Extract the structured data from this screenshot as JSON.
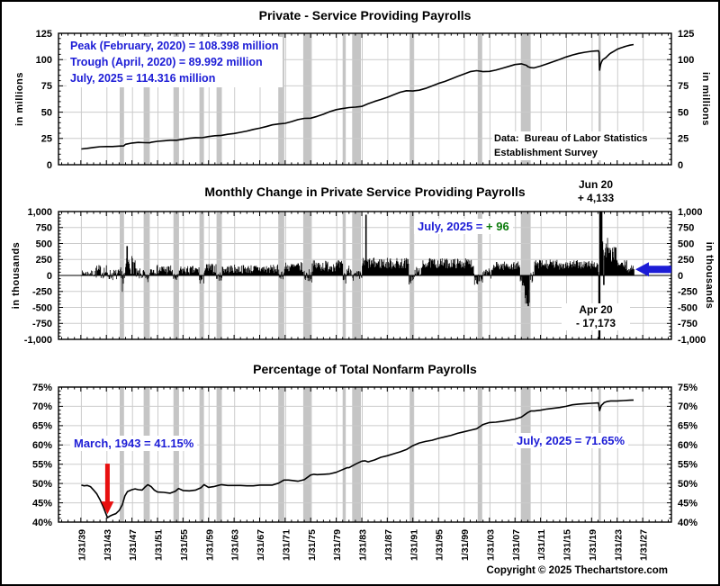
{
  "page": {
    "copyright": "Copyright © 2025 Thechartstore.com"
  },
  "colors": {
    "annotation_blue": "#1c1cd6",
    "positive_green": "#0a7a0a",
    "arrow_red": "#e81010",
    "series_black": "#000000",
    "recession_band": "#c5c5c5",
    "gridline": "#cbcbcb",
    "axis_black": "#000000"
  },
  "x_axis": {
    "domain": [
      1935.5,
      2031.5
    ],
    "tick_years": [
      1939.083,
      1943.083,
      1947.083,
      1951.083,
      1955.083,
      1959.083,
      1963.083,
      1967.083,
      1971.083,
      1975.083,
      1979.083,
      1983.083,
      1987.083,
      1991.083,
      1995.083,
      1999.083,
      2003.083,
      2007.083,
      2011.083,
      2015.083,
      2019.083,
      2023.083,
      2027.083
    ],
    "tick_labels": [
      "1/31/39",
      "1/31/43",
      "1/31/47",
      "1/31/51",
      "1/31/55",
      "1/31/59",
      "1/31/63",
      "1/31/67",
      "1/31/71",
      "1/31/75",
      "1/31/79",
      "1/31/83",
      "1/31/87",
      "1/31/91",
      "1/31/95",
      "1/31/99",
      "1/31/03",
      "1/31/07",
      "1/31/11",
      "1/31/15",
      "1/31/19",
      "1/31/23",
      "1/31/27"
    ],
    "minor_step_years": 1
  },
  "recessions": [
    [
      1945.08,
      1945.75
    ],
    [
      1948.83,
      1949.79
    ],
    [
      1953.5,
      1954.38
    ],
    [
      1957.58,
      1958.29
    ],
    [
      1960.25,
      1961.08
    ],
    [
      1969.92,
      1970.87
    ],
    [
      1973.83,
      1975.17
    ],
    [
      1980.0,
      1980.5
    ],
    [
      1981.5,
      1982.87
    ],
    [
      1990.5,
      1991.21
    ],
    [
      2001.17,
      2001.87
    ],
    [
      2007.92,
      2009.45
    ],
    [
      2020.08,
      2020.45
    ]
  ],
  "chart_data": [
    {
      "id": "levels",
      "type": "line",
      "title": "Private - Service Providing Payrolls",
      "y_axis_title": "in millions",
      "ylim": [
        0,
        125
      ],
      "yticks": [
        0,
        25,
        50,
        75,
        100,
        125
      ],
      "ytick_labels": [
        "0",
        "25",
        "50",
        "75",
        "100",
        "125"
      ],
      "y_minor_step": 5,
      "annotations": {
        "peak": "Peak (February, 2020) = 108.398 million",
        "trough": "Trough (April, 2020) = 89.992 million",
        "current": "July, 2025 = 114.316 million",
        "source_line1": "Data:  Bureau of Labor Statistics",
        "source_line2": "Establishment Survey"
      },
      "points": [
        [
          1939.08,
          15.0
        ],
        [
          1940,
          15.6
        ],
        [
          1941,
          16.4
        ],
        [
          1942,
          17.1
        ],
        [
          1943,
          17.3
        ],
        [
          1944,
          17.3
        ],
        [
          1945,
          17.7
        ],
        [
          1945.7,
          17.9
        ],
        [
          1946,
          19.4
        ],
        [
          1947,
          20.6
        ],
        [
          1948,
          21.2
        ],
        [
          1949,
          21.0
        ],
        [
          1949.8,
          20.9
        ],
        [
          1950,
          21.3
        ],
        [
          1951,
          22.3
        ],
        [
          1952,
          22.8
        ],
        [
          1953,
          23.3
        ],
        [
          1954,
          23.3
        ],
        [
          1955,
          24.2
        ],
        [
          1956,
          25.2
        ],
        [
          1957,
          25.8
        ],
        [
          1958,
          25.7
        ],
        [
          1959,
          26.8
        ],
        [
          1960,
          27.6
        ],
        [
          1961,
          27.9
        ],
        [
          1962,
          28.9
        ],
        [
          1963,
          29.7
        ],
        [
          1964,
          30.8
        ],
        [
          1965,
          32.0
        ],
        [
          1966,
          33.6
        ],
        [
          1967,
          34.8
        ],
        [
          1968,
          36.2
        ],
        [
          1969,
          37.9
        ],
        [
          1970,
          38.8
        ],
        [
          1971,
          39.4
        ],
        [
          1972,
          41.0
        ],
        [
          1973,
          42.9
        ],
        [
          1974,
          44.1
        ],
        [
          1975,
          44.3
        ],
        [
          1976,
          46.0
        ],
        [
          1977,
          48.0
        ],
        [
          1978,
          50.5
        ],
        [
          1979,
          52.4
        ],
        [
          1980,
          53.4
        ],
        [
          1981,
          54.4
        ],
        [
          1982,
          54.8
        ],
        [
          1983,
          55.5
        ],
        [
          1984,
          58.0
        ],
        [
          1985,
          60.2
        ],
        [
          1986,
          62.1
        ],
        [
          1987,
          64.1
        ],
        [
          1988,
          66.6
        ],
        [
          1989,
          68.9
        ],
        [
          1990,
          70.4
        ],
        [
          1991,
          70.1
        ],
        [
          1992,
          70.9
        ],
        [
          1993,
          72.6
        ],
        [
          1994,
          74.9
        ],
        [
          1995,
          77.3
        ],
        [
          1996,
          79.2
        ],
        [
          1997,
          81.6
        ],
        [
          1998,
          84.0
        ],
        [
          1999,
          86.3
        ],
        [
          2000,
          88.5
        ],
        [
          2001,
          89.5
        ],
        [
          2001.8,
          88.8
        ],
        [
          2002,
          88.5
        ],
        [
          2003,
          88.8
        ],
        [
          2004,
          90.0
        ],
        [
          2005,
          91.7
        ],
        [
          2006,
          93.5
        ],
        [
          2007,
          95.3
        ],
        [
          2008,
          96.0
        ],
        [
          2008.8,
          94.5
        ],
        [
          2009,
          93.3
        ],
        [
          2009.5,
          92.3
        ],
        [
          2010,
          92.1
        ],
        [
          2011,
          93.8
        ],
        [
          2012,
          95.9
        ],
        [
          2013,
          98.0
        ],
        [
          2014,
          100.2
        ],
        [
          2015,
          102.5
        ],
        [
          2016,
          104.4
        ],
        [
          2017,
          105.9
        ],
        [
          2018,
          107.0
        ],
        [
          2019,
          107.9
        ],
        [
          2019.5,
          108.1
        ],
        [
          2020.08,
          108.398
        ],
        [
          2020.17,
          107.0
        ],
        [
          2020.25,
          89.992
        ],
        [
          2020.42,
          95.5
        ],
        [
          2020.58,
          98.0
        ],
        [
          2020.75,
          99.8
        ],
        [
          2020.92,
          100.6
        ],
        [
          2021.25,
          102.0
        ],
        [
          2021.5,
          103.5
        ],
        [
          2021.75,
          105.0
        ],
        [
          2022,
          106.2
        ],
        [
          2022.5,
          108.0
        ],
        [
          2023,
          109.8
        ],
        [
          2023.5,
          111.0
        ],
        [
          2024,
          112.0
        ],
        [
          2024.5,
          112.9
        ],
        [
          2025,
          113.7
        ],
        [
          2025.58,
          114.316
        ]
      ]
    },
    {
      "id": "monthly-change",
      "type": "bar",
      "title": "Monthly Change in Private Service Providing Payrolls",
      "y_axis_title": "in thousands",
      "ylim": [
        -1000,
        1000
      ],
      "yticks": [
        -1000,
        -750,
        -500,
        -250,
        0,
        250,
        500,
        750,
        1000
      ],
      "ytick_labels": [
        "-1,000",
        "-750",
        "-500",
        "-250",
        "0",
        "250",
        "500",
        "750",
        "1,000"
      ],
      "y_minor_step": 50,
      "bar_months": {
        "start": 1939.083,
        "end": 2025.583,
        "step_months": 1,
        "noise_seed": 7
      },
      "segments": [
        [
          1939.08,
          1941,
          35,
          45
        ],
        [
          1941,
          1943,
          60,
          110
        ],
        [
          1943,
          1945.2,
          10,
          90
        ],
        [
          1945.2,
          1946,
          -60,
          200
        ],
        [
          1946,
          1947.5,
          170,
          150
        ],
        [
          1947.5,
          1949,
          20,
          90
        ],
        [
          1949,
          1949.8,
          -60,
          80
        ],
        [
          1949.8,
          1953.4,
          90,
          80
        ],
        [
          1953.4,
          1954.4,
          -40,
          70
        ],
        [
          1954.4,
          1957.5,
          80,
          70
        ],
        [
          1957.5,
          1958.3,
          -70,
          80
        ],
        [
          1958.3,
          1960.2,
          110,
          80
        ],
        [
          1960.2,
          1961.1,
          -20,
          70
        ],
        [
          1961.1,
          1969.9,
          100,
          70
        ],
        [
          1969.9,
          1970.9,
          20,
          80
        ],
        [
          1970.9,
          1973.8,
          130,
          80
        ],
        [
          1973.8,
          1975.2,
          0,
          110
        ],
        [
          1975.2,
          1980,
          150,
          90
        ],
        [
          1980,
          1980.6,
          -30,
          110
        ],
        [
          1980.6,
          1981.5,
          80,
          90
        ],
        [
          1981.5,
          1983,
          -20,
          100
        ],
        [
          1983,
          1990.4,
          190,
          90
        ],
        [
          1990.4,
          1991.3,
          -60,
          90
        ],
        [
          1991.3,
          1992.5,
          60,
          80
        ],
        [
          1992.5,
          2000.5,
          190,
          80
        ],
        [
          2000.5,
          2002,
          -40,
          110
        ],
        [
          2002,
          2003.5,
          30,
          80
        ],
        [
          2003.5,
          2007.8,
          150,
          70
        ],
        [
          2007.8,
          2008.5,
          -90,
          90
        ],
        [
          2008.5,
          2009.3,
          -330,
          110
        ],
        [
          2009.3,
          2010,
          -30,
          90
        ],
        [
          2010,
          2015,
          170,
          80
        ],
        [
          2015,
          2020,
          170,
          70
        ],
        [
          2020.6,
          2021.6,
          420,
          180
        ],
        [
          2021.6,
          2023,
          330,
          120
        ],
        [
          2023,
          2024.5,
          160,
          80
        ],
        [
          2024.5,
          2025.5,
          100,
          60
        ]
      ],
      "event_bars": [
        [
          1946.25,
          460
        ],
        [
          1983.67,
          950
        ],
        [
          2008.92,
          -440
        ],
        [
          2009.08,
          -480
        ],
        [
          2020.17,
          -1300
        ],
        [
          2020.25,
          -17173
        ],
        [
          2020.33,
          2900
        ],
        [
          2020.42,
          4133
        ],
        [
          2020.5,
          1600
        ],
        [
          2020.58,
          1000
        ],
        [
          2020.92,
          -150
        ],
        [
          2025.58,
          96
        ]
      ],
      "annotations": {
        "high_label": "Jun 20",
        "high_value": "+ 4,133",
        "current_label": "July, 2025 =",
        "current_value": "+ 96",
        "low_label": "Apr 20",
        "low_value": "- 17,173"
      },
      "current_arrow": {
        "x_value": 2025.58,
        "y_value": 96,
        "color": "blue",
        "direction": "left"
      }
    },
    {
      "id": "percentage",
      "type": "line",
      "title": "Percentage of Total Nonfarm Payrolls",
      "y_axis_title": "",
      "ylim": [
        40,
        75
      ],
      "yticks": [
        40,
        45,
        50,
        55,
        60,
        65,
        70,
        75
      ],
      "ytick_labels": [
        "40%",
        "45%",
        "50%",
        "55%",
        "60%",
        "65%",
        "70%",
        "75%"
      ],
      "y_minor_step": 1,
      "annotations": {
        "trough": "March, 1943 = 41.15%",
        "current": "July, 2025 = 71.65%"
      },
      "trough_arrow": {
        "x_value": 1943.17,
        "y_value": 41.15,
        "color": "red",
        "direction": "down"
      },
      "points": [
        [
          1939.08,
          49.6
        ],
        [
          1939.5,
          49.4
        ],
        [
          1940,
          49.5
        ],
        [
          1940.5,
          49.2
        ],
        [
          1941,
          48.3
        ],
        [
          1941.5,
          47.3
        ],
        [
          1942,
          45.8
        ],
        [
          1942.5,
          44.0
        ],
        [
          1943.17,
          41.15
        ],
        [
          1943.6,
          41.6
        ],
        [
          1944,
          41.9
        ],
        [
          1944.5,
          42.2
        ],
        [
          1945,
          43.0
        ],
        [
          1945.5,
          44.5
        ],
        [
          1945.9,
          46.8
        ],
        [
          1946.3,
          47.9
        ],
        [
          1947,
          48.4
        ],
        [
          1947.5,
          48.6
        ],
        [
          1948,
          48.4
        ],
        [
          1948.6,
          48.3
        ],
        [
          1949,
          49.0
        ],
        [
          1949.5,
          49.7
        ],
        [
          1950,
          49.2
        ],
        [
          1950.5,
          48.3
        ],
        [
          1951,
          47.8
        ],
        [
          1952,
          47.7
        ],
        [
          1953,
          47.5
        ],
        [
          1953.8,
          48.0
        ],
        [
          1954.3,
          48.7
        ],
        [
          1955,
          48.2
        ],
        [
          1956,
          48.1
        ],
        [
          1957,
          48.3
        ],
        [
          1957.8,
          48.9
        ],
        [
          1958.3,
          49.7
        ],
        [
          1959,
          49.0
        ],
        [
          1959.8,
          49.2
        ],
        [
          1960.5,
          49.5
        ],
        [
          1961,
          49.7
        ],
        [
          1962,
          49.5
        ],
        [
          1963,
          49.5
        ],
        [
          1964,
          49.5
        ],
        [
          1965,
          49.4
        ],
        [
          1966,
          49.4
        ],
        [
          1967,
          49.6
        ],
        [
          1968,
          49.6
        ],
        [
          1969,
          49.6
        ],
        [
          1970,
          50.1
        ],
        [
          1970.8,
          50.9
        ],
        [
          1971.5,
          50.9
        ],
        [
          1972,
          50.8
        ],
        [
          1973,
          50.6
        ],
        [
          1974,
          51.0
        ],
        [
          1975,
          52.2
        ],
        [
          1975.5,
          52.4
        ],
        [
          1976,
          52.3
        ],
        [
          1977,
          52.4
        ],
        [
          1978,
          52.5
        ],
        [
          1979,
          52.9
        ],
        [
          1980,
          53.6
        ],
        [
          1980.7,
          54.1
        ],
        [
          1981,
          54.1
        ],
        [
          1982,
          55.0
        ],
        [
          1983,
          55.8
        ],
        [
          1983.5,
          55.9
        ],
        [
          1984,
          55.6
        ],
        [
          1985,
          56.1
        ],
        [
          1986,
          56.8
        ],
        [
          1987,
          57.2
        ],
        [
          1988,
          57.7
        ],
        [
          1989,
          58.2
        ],
        [
          1990,
          58.8
        ],
        [
          1991,
          59.8
        ],
        [
          1992,
          60.5
        ],
        [
          1993,
          60.9
        ],
        [
          1994,
          61.2
        ],
        [
          1995,
          61.7
        ],
        [
          1996,
          62.1
        ],
        [
          1997,
          62.5
        ],
        [
          1998,
          63.0
        ],
        [
          1999,
          63.4
        ],
        [
          2000,
          63.8
        ],
        [
          2001,
          64.2
        ],
        [
          2002,
          65.3
        ],
        [
          2003,
          65.8
        ],
        [
          2004,
          65.9
        ],
        [
          2005,
          66.1
        ],
        [
          2006,
          66.4
        ],
        [
          2007,
          66.7
        ],
        [
          2008,
          67.2
        ],
        [
          2009,
          68.4
        ],
        [
          2009.5,
          68.8
        ],
        [
          2010,
          68.8
        ],
        [
          2011,
          69.0
        ],
        [
          2012,
          69.3
        ],
        [
          2013,
          69.5
        ],
        [
          2014,
          69.7
        ],
        [
          2015,
          70.0
        ],
        [
          2016,
          70.4
        ],
        [
          2017,
          70.6
        ],
        [
          2018,
          70.7
        ],
        [
          2019,
          70.8
        ],
        [
          2020.08,
          70.9
        ],
        [
          2020.25,
          68.9
        ],
        [
          2020.5,
          70.2
        ],
        [
          2020.75,
          70.6
        ],
        [
          2021,
          71.0
        ],
        [
          2021.5,
          71.3
        ],
        [
          2022,
          71.4
        ],
        [
          2022.5,
          71.4
        ],
        [
          2023,
          71.4
        ],
        [
          2024,
          71.5
        ],
        [
          2025,
          71.6
        ],
        [
          2025.58,
          71.65
        ]
      ]
    }
  ]
}
